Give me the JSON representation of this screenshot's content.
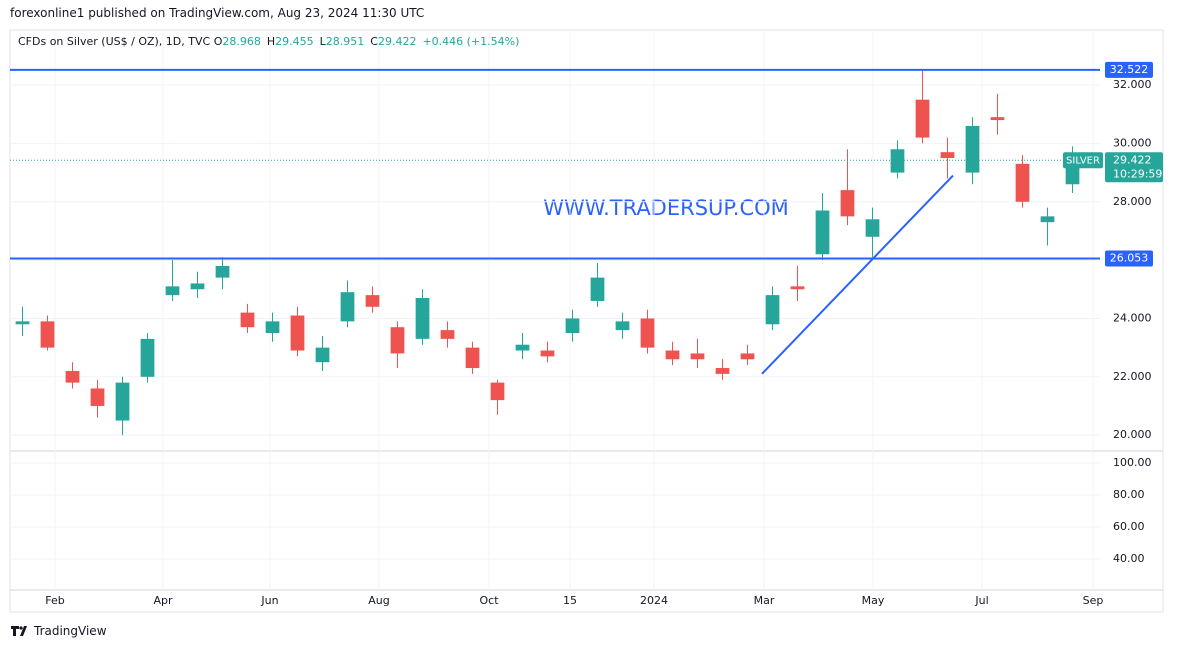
{
  "chart_data": {
    "type": "candlestick",
    "header": "forexonline1 published on TradingView.com, Aug 23, 2024 11:30 UTC",
    "instrument": "CFDs on Silver (US$ / OZ), 1D, TVC",
    "ohlc_legend": [
      {
        "key": "O",
        "value": 28.968
      },
      {
        "key": "H",
        "value": 29.455
      },
      {
        "key": "L",
        "value": 28.951
      },
      {
        "key": "C",
        "value": 29.422
      }
    ],
    "change": "+0.446 (+1.54%)",
    "watermark": "WWW.TRADERSUP.COM",
    "footer": "TradingView",
    "symbol": "SILVER",
    "last_price": 29.422,
    "countdown": "10:29:59",
    "up_color": "#26a69a",
    "down_color": "#ef5350",
    "line_color": "#2962ff",
    "candles": {
      "open": [
        23.8,
        23.9,
        22.2,
        21.6,
        20.5,
        22.0,
        24.8,
        25.0,
        25.4,
        24.2,
        23.5,
        24.1,
        22.5,
        23.9,
        24.8,
        23.7,
        23.3,
        23.6,
        23.0,
        21.8,
        22.9,
        22.9,
        23.5,
        24.6,
        23.6,
        24.0,
        22.9,
        22.8,
        22.3,
        22.8,
        23.8,
        25.1,
        26.2,
        28.4,
        26.8,
        29.0,
        31.5,
        29.7,
        29.0,
        30.9,
        29.3,
        27.3,
        28.6
      ],
      "high": [
        24.4,
        24.1,
        22.5,
        21.9,
        22.0,
        23.5,
        26.0,
        25.6,
        26.1,
        24.5,
        24.2,
        24.4,
        23.4,
        25.3,
        25.1,
        23.9,
        25.0,
        23.9,
        23.2,
        21.9,
        23.5,
        23.2,
        24.3,
        25.9,
        24.2,
        24.3,
        23.2,
        23.3,
        22.6,
        23.1,
        25.1,
        25.8,
        28.3,
        29.8,
        27.8,
        30.1,
        32.5,
        30.2,
        30.9,
        31.7,
        29.6,
        27.8,
        29.9
      ],
      "low": [
        23.4,
        22.9,
        21.6,
        20.6,
        20.0,
        21.8,
        24.6,
        24.7,
        25.0,
        23.5,
        23.2,
        22.7,
        22.2,
        23.7,
        24.2,
        22.3,
        23.1,
        23.0,
        22.1,
        20.7,
        22.6,
        22.5,
        23.2,
        24.4,
        23.3,
        22.8,
        22.4,
        22.3,
        21.9,
        22.4,
        23.6,
        24.6,
        26.0,
        27.2,
        26.1,
        28.8,
        30.0,
        28.8,
        28.6,
        30.3,
        27.8,
        26.5,
        28.3
      ],
      "close": [
        23.9,
        23.0,
        21.8,
        21.0,
        21.8,
        23.3,
        25.1,
        25.2,
        25.8,
        23.7,
        23.9,
        22.9,
        23.0,
        24.9,
        24.4,
        22.8,
        24.7,
        23.3,
        22.3,
        21.2,
        23.1,
        22.7,
        24.0,
        25.4,
        23.9,
        23.0,
        22.6,
        22.6,
        22.1,
        22.6,
        24.8,
        25.0,
        27.7,
        27.5,
        27.4,
        29.8,
        30.2,
        29.5,
        30.6,
        30.8,
        28.0,
        27.5,
        29.4
      ]
    },
    "hlines": [
      32.522,
      26.053
    ],
    "trendline": {
      "x": [
        29.58,
        37.22
      ],
      "y": [
        22.1,
        28.9
      ]
    },
    "xlim": [
      -0.5,
      43.1
    ],
    "xticks": [
      {
        "value": 1.3,
        "label": "Feb"
      },
      {
        "value": 5.62,
        "label": "Apr"
      },
      {
        "value": 9.9,
        "label": "Jun"
      },
      {
        "value": 14.26,
        "label": "Aug"
      },
      {
        "value": 18.66,
        "label": "Oct"
      },
      {
        "value": 21.9,
        "label": "15"
      },
      {
        "value": 25.26,
        "label": "2024"
      },
      {
        "value": 29.66,
        "label": "Mar"
      },
      {
        "value": 34.02,
        "label": "May"
      },
      {
        "value": 38.38,
        "label": "Jul"
      },
      {
        "value": 42.82,
        "label": "Sep"
      }
    ],
    "ylim": [
      19.49,
      32.86
    ],
    "yticks": [
      {
        "value": 20,
        "label": "20.000"
      },
      {
        "value": 22,
        "label": "22.000"
      },
      {
        "value": 24,
        "label": "24.000"
      },
      {
        "value": 26,
        "label": "26.000"
      },
      {
        "value": 28,
        "label": "28.000"
      },
      {
        "value": 30,
        "label": "30.000"
      },
      {
        "value": 32,
        "label": "32.000"
      }
    ],
    "lower_pane": {
      "ylim": [
        20.6,
        106.9
      ],
      "yticks": [
        {
          "value": 40,
          "label": "40.00"
        },
        {
          "value": 60,
          "label": "60.00"
        },
        {
          "value": 80,
          "label": "80.00"
        },
        {
          "value": 100,
          "label": "100.00"
        }
      ]
    },
    "grid": true
  }
}
